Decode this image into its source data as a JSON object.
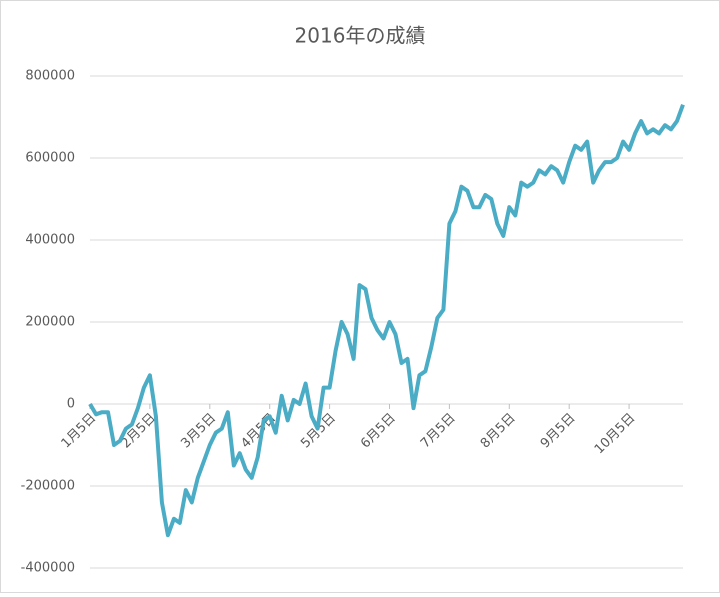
{
  "chart_data": {
    "type": "line",
    "title": "2016年の成績",
    "categories": [
      "1月5日",
      null,
      null,
      null,
      null,
      null,
      null,
      null,
      null,
      null,
      "2月5日",
      null,
      null,
      null,
      null,
      null,
      null,
      null,
      null,
      null,
      "3月5日",
      null,
      null,
      null,
      null,
      null,
      null,
      null,
      null,
      null,
      "4月5日",
      null,
      null,
      null,
      null,
      null,
      null,
      null,
      null,
      null,
      "5月5日",
      null,
      null,
      null,
      null,
      null,
      null,
      null,
      null,
      null,
      "6月5日",
      null,
      null,
      null,
      null,
      null,
      null,
      null,
      null,
      null,
      "7月5日",
      null,
      null,
      null,
      null,
      null,
      null,
      null,
      null,
      null,
      "8月5日",
      null,
      null,
      null,
      null,
      null,
      null,
      null,
      null,
      null,
      "9月5日",
      null,
      null,
      null,
      null,
      null,
      null,
      null,
      null,
      null,
      "10月5日",
      null,
      null,
      null,
      null,
      null,
      null,
      null,
      null,
      null
    ],
    "series": [
      {
        "color": "#4bacc6",
        "values": [
          0,
          -25000,
          -20000,
          -20000,
          -100000,
          -90000,
          -60000,
          -50000,
          -10000,
          40000,
          70000,
          -30000,
          -240000,
          -320000,
          -280000,
          -290000,
          -210000,
          -240000,
          -180000,
          -140000,
          -100000,
          -70000,
          -60000,
          -20000,
          -150000,
          -120000,
          -160000,
          -180000,
          -130000,
          -40000,
          -30000,
          -70000,
          20000,
          -40000,
          10000,
          0,
          50000,
          -30000,
          -60000,
          40000,
          40000,
          130000,
          200000,
          170000,
          110000,
          290000,
          280000,
          210000,
          180000,
          160000,
          200000,
          170000,
          100000,
          110000,
          -10000,
          70000,
          80000,
          140000,
          210000,
          230000,
          440000,
          470000,
          530000,
          520000,
          480000,
          480000,
          510000,
          500000,
          440000,
          410000,
          480000,
          460000,
          540000,
          530000,
          540000,
          570000,
          560000,
          580000,
          570000,
          540000,
          590000,
          630000,
          620000,
          640000,
          540000,
          570000,
          590000,
          590000,
          600000,
          640000,
          620000,
          660000,
          690000,
          660000,
          670000,
          660000,
          680000,
          670000,
          690000,
          730000
        ]
      }
    ],
    "ylim": [
      -400000,
      800000
    ],
    "yticks": [
      -400000,
      -200000,
      0,
      200000,
      400000,
      600000,
      800000
    ],
    "grid": true
  }
}
